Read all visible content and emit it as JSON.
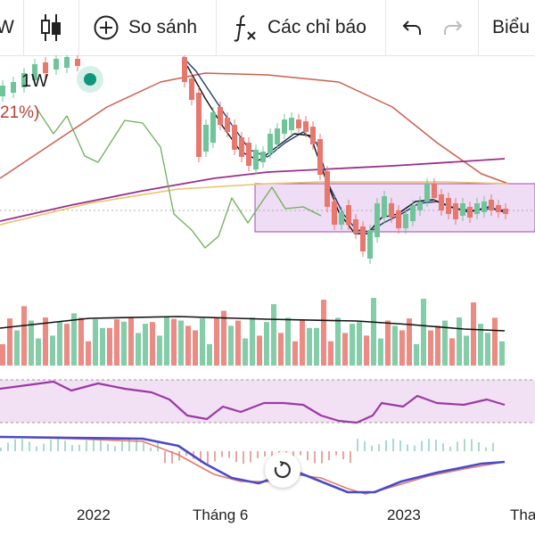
{
  "toolbar": {
    "interval_partial": "W",
    "compare_label": "So sánh",
    "indicators_label": "Các chỉ báo",
    "chart_type_label": "Biểu"
  },
  "legend": {
    "interval": "1W",
    "change_pct": "21%)"
  },
  "x_axis": [
    "2022",
    "Tháng 6",
    "2023",
    "Tha"
  ],
  "colors": {
    "up": "#6fc49a",
    "down": "#e8776d",
    "ma_dark_blue": "#1f3b73",
    "ma_green": "#6fae5a",
    "ma_red": "#c9604f",
    "ma_purple": "#9c2f8a",
    "ma_yellow": "#e9c26a",
    "range_box": "#e6c9f0",
    "rsi_line": "#9b3aa6",
    "macd_line": "#4a4ac8",
    "signal_line": "#e07b6e"
  },
  "icons": [
    "candlestick-icon",
    "plus-circle-icon",
    "fx-icon",
    "undo-icon",
    "redo-icon",
    "reset-icon"
  ]
}
